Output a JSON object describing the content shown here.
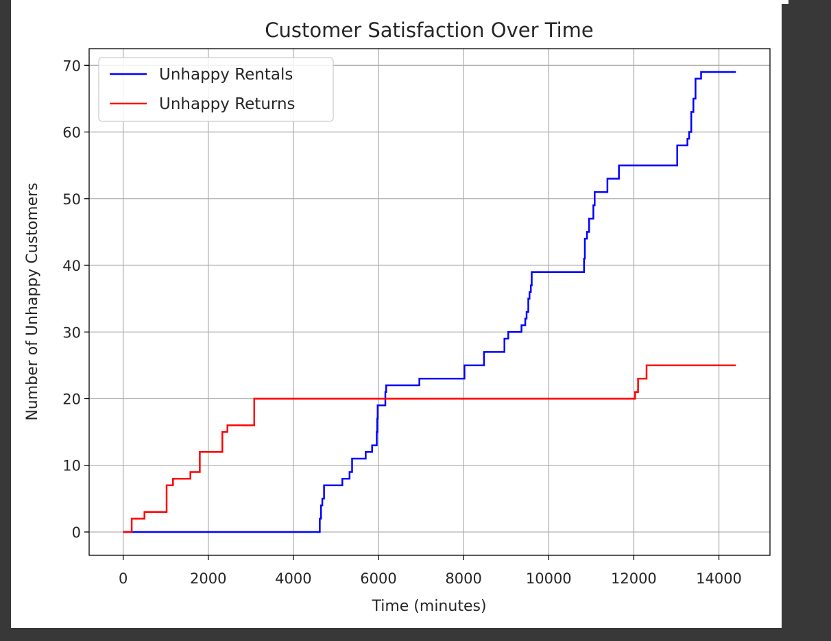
{
  "chart_data": {
    "type": "line",
    "title": "Customer Satisfaction Over Time",
    "xlabel": "Time (minutes)",
    "ylabel": "Number of Unhappy Customers",
    "xlim": [
      -800,
      15200
    ],
    "ylim": [
      -3.5,
      72.5
    ],
    "xticks": [
      0,
      2000,
      4000,
      6000,
      8000,
      10000,
      12000,
      14000
    ],
    "xtick_labels": [
      "0",
      "2000",
      "4000",
      "6000",
      "8000",
      "10000",
      "12000",
      "14000"
    ],
    "yticks": [
      0,
      10,
      20,
      30,
      40,
      50,
      60,
      70
    ],
    "ytick_labels": [
      "0",
      "10",
      "20",
      "30",
      "40",
      "50",
      "60",
      "70"
    ],
    "grid": true,
    "legend_position": "upper-left",
    "series": [
      {
        "name": "Unhappy Rentals",
        "color": "#0000ff",
        "step": true,
        "points": [
          [
            0,
            0
          ],
          [
            4600,
            0
          ],
          [
            4620,
            2
          ],
          [
            4650,
            4
          ],
          [
            4680,
            5
          ],
          [
            4720,
            7
          ],
          [
            5100,
            7
          ],
          [
            5150,
            8
          ],
          [
            5300,
            8
          ],
          [
            5320,
            9
          ],
          [
            5380,
            11
          ],
          [
            5650,
            11
          ],
          [
            5700,
            12
          ],
          [
            5850,
            13
          ],
          [
            5950,
            13
          ],
          [
            5960,
            15
          ],
          [
            5970,
            17
          ],
          [
            5980,
            19
          ],
          [
            6150,
            19
          ],
          [
            6160,
            21
          ],
          [
            6180,
            22
          ],
          [
            6950,
            22
          ],
          [
            6960,
            23
          ],
          [
            8000,
            23
          ],
          [
            8020,
            25
          ],
          [
            8450,
            25
          ],
          [
            8480,
            27
          ],
          [
            8950,
            27
          ],
          [
            8960,
            29
          ],
          [
            9050,
            30
          ],
          [
            9350,
            30
          ],
          [
            9360,
            31
          ],
          [
            9450,
            32
          ],
          [
            9480,
            33
          ],
          [
            9520,
            35
          ],
          [
            9550,
            36
          ],
          [
            9580,
            37
          ],
          [
            9600,
            39
          ],
          [
            10800,
            39
          ],
          [
            10830,
            41
          ],
          [
            10850,
            44
          ],
          [
            10900,
            45
          ],
          [
            10950,
            47
          ],
          [
            11050,
            49
          ],
          [
            11080,
            51
          ],
          [
            11350,
            51
          ],
          [
            11380,
            53
          ],
          [
            11620,
            53
          ],
          [
            11650,
            55
          ],
          [
            13000,
            55
          ],
          [
            13020,
            58
          ],
          [
            13250,
            58
          ],
          [
            13260,
            59
          ],
          [
            13300,
            60
          ],
          [
            13350,
            63
          ],
          [
            13400,
            65
          ],
          [
            13450,
            68
          ],
          [
            13550,
            68
          ],
          [
            13580,
            69
          ],
          [
            14400,
            69
          ]
        ]
      },
      {
        "name": "Unhappy Returns",
        "color": "#ff0000",
        "step": true,
        "points": [
          [
            0,
            0
          ],
          [
            180,
            0
          ],
          [
            200,
            2
          ],
          [
            480,
            2
          ],
          [
            500,
            3
          ],
          [
            1000,
            3
          ],
          [
            1020,
            7
          ],
          [
            1150,
            7
          ],
          [
            1170,
            8
          ],
          [
            1550,
            8
          ],
          [
            1580,
            9
          ],
          [
            1780,
            9
          ],
          [
            1800,
            12
          ],
          [
            2300,
            12
          ],
          [
            2330,
            15
          ],
          [
            2430,
            15
          ],
          [
            2450,
            16
          ],
          [
            3050,
            16
          ],
          [
            3080,
            20
          ],
          [
            12000,
            20
          ],
          [
            12030,
            21
          ],
          [
            12100,
            23
          ],
          [
            12280,
            23
          ],
          [
            12300,
            25
          ],
          [
            14400,
            25
          ]
        ]
      }
    ]
  }
}
